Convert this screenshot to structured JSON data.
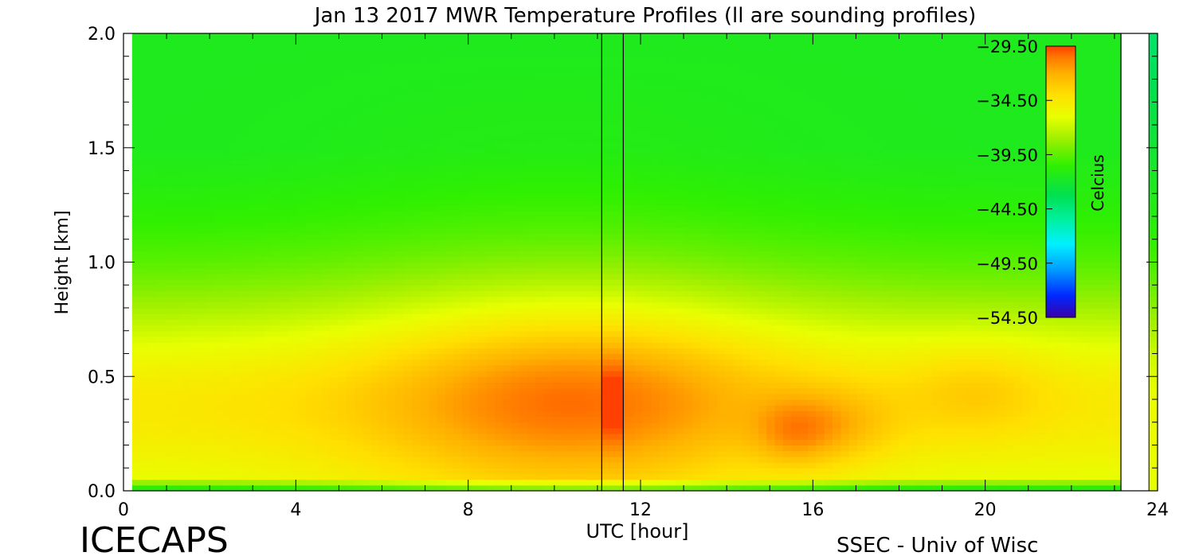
{
  "chart_data": {
    "type": "heatmap",
    "title": "Jan 13 2017 MWR Temperature Profiles (ll are sounding profiles)",
    "xlabel": "UTC [hour]",
    "ylabel": "Height [km]",
    "xlim": [
      0,
      24
    ],
    "ylim": [
      0,
      2.0
    ],
    "x_ticks": [
      "0",
      "4",
      "8",
      "12",
      "16",
      "20",
      "24"
    ],
    "y_ticks": [
      "0.0",
      "0.5",
      "1.0",
      "1.5",
      "2.0"
    ],
    "colorbar": {
      "label": "Celcius",
      "ticks": [
        "-29.50",
        "-34.50",
        "-39.50",
        "-44.50",
        "-49.50",
        "-54.50"
      ],
      "range": [
        -54.5,
        -29.5
      ],
      "colors": [
        "#3a00a8",
        "#0028ff",
        "#00a0ff",
        "#00f0ff",
        "#00f0a0",
        "#00e050",
        "#30f000",
        "#a0f000",
        "#e8ff00",
        "#ffe000",
        "#ffb000",
        "#ff7800",
        "#ff4000"
      ]
    },
    "sounding_profiles_utc": [
      11.1,
      11.6,
      23.15
    ],
    "data_coverage_utc": [
      0.2,
      23.15
    ],
    "profile_note": "Warm layer (about -31 to -33 C) near 0.4 km peaking around 10-11 UTC; -38 to -42 C near 2 km; coldest values in a thin surface layer."
  },
  "footer": {
    "left_label": "ICECAPS",
    "right_label": "SSEC - Univ of Wisc"
  }
}
